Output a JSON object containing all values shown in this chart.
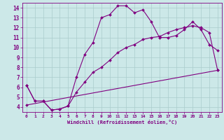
{
  "title": "",
  "xlabel": "Windchill (Refroidissement éolien,°C)",
  "ylabel": "",
  "bg_color": "#cce8e8",
  "line_color": "#800080",
  "grid_color": "#aacccc",
  "xlim": [
    -0.5,
    23.5
  ],
  "ylim": [
    3.5,
    14.5
  ],
  "xticks": [
    0,
    1,
    2,
    3,
    4,
    5,
    6,
    7,
    8,
    9,
    10,
    11,
    12,
    13,
    14,
    15,
    16,
    17,
    18,
    19,
    20,
    21,
    22,
    23
  ],
  "yticks": [
    4,
    5,
    6,
    7,
    8,
    9,
    10,
    11,
    12,
    13,
    14
  ],
  "series1_x": [
    0,
    1,
    2,
    3,
    4,
    5,
    6,
    7,
    8,
    9,
    10,
    11,
    12,
    13,
    14,
    15,
    16,
    17,
    18,
    19,
    20,
    21,
    22,
    23
  ],
  "series1_y": [
    6.2,
    4.6,
    4.6,
    3.7,
    3.8,
    4.1,
    7.0,
    9.3,
    10.5,
    13.0,
    13.3,
    14.2,
    14.2,
    13.5,
    13.8,
    12.6,
    11.0,
    11.0,
    11.2,
    11.8,
    12.6,
    11.8,
    10.3,
    9.7
  ],
  "series2_x": [
    0,
    1,
    2,
    3,
    4,
    5,
    6,
    7,
    8,
    9,
    10,
    11,
    12,
    13,
    14,
    15,
    16,
    17,
    18,
    19,
    20,
    21,
    22,
    23
  ],
  "series2_y": [
    6.2,
    4.6,
    4.6,
    3.7,
    3.8,
    4.1,
    5.5,
    6.5,
    7.5,
    8.0,
    8.7,
    9.5,
    10.0,
    10.3,
    10.8,
    11.0,
    11.1,
    11.5,
    11.8,
    12.0,
    12.2,
    12.0,
    11.5,
    7.7
  ],
  "series3_x": [
    0,
    23
  ],
  "series3_y": [
    4.2,
    7.7
  ]
}
